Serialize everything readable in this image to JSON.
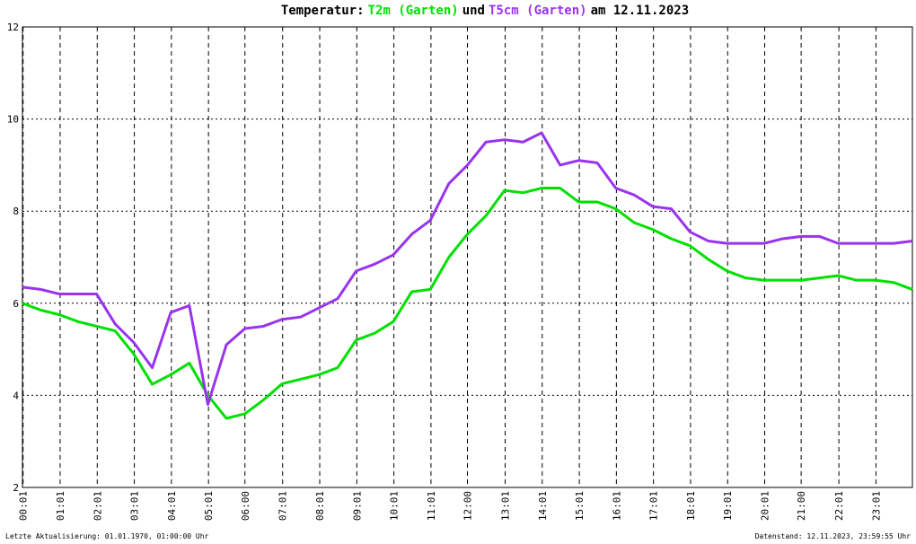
{
  "chart_data": {
    "type": "line",
    "title_start": "Temperatur:",
    "title_middle": "und",
    "title_end": "am 12.11.2023",
    "footer_left": "Letzte Aktualisierung: 01.01.1970, 01:00:00 Uhr",
    "footer_right": "Datenstand: 12.11.2023, 23:59:55 Uhr",
    "x": [
      0,
      0.5,
      1,
      1.5,
      2,
      2.5,
      3,
      3.5,
      4,
      4.5,
      5,
      5.5,
      6,
      6.5,
      7,
      7.5,
      8,
      8.5,
      9,
      9.5,
      10,
      10.5,
      11,
      11.5,
      12,
      12.5,
      13,
      13.5,
      14,
      14.5,
      15,
      15.5,
      16,
      16.5,
      17,
      17.5,
      18,
      18.5,
      19,
      19.5,
      20,
      20.5,
      21,
      21.5,
      22,
      22.5,
      23,
      23.5,
      24
    ],
    "series": [
      {
        "name": "T2m (Garten)",
        "color": "#00e000",
        "values": [
          6.0,
          5.85,
          5.75,
          5.6,
          5.5,
          5.4,
          4.9,
          4.24,
          4.45,
          4.7,
          4.0,
          3.5,
          3.6,
          3.9,
          4.25,
          4.35,
          4.45,
          4.6,
          5.2,
          5.35,
          5.6,
          6.25,
          6.3,
          7.0,
          7.5,
          7.9,
          8.45,
          8.4,
          8.5,
          8.5,
          8.2,
          8.2,
          8.05,
          7.75,
          7.6,
          7.4,
          7.25,
          6.95,
          6.7,
          6.55,
          6.5,
          6.5,
          6.5,
          6.55,
          6.6,
          6.5,
          6.5,
          6.45,
          6.3
        ]
      },
      {
        "name": "T5cm (Garten)",
        "color": "#9933ee",
        "values": [
          6.35,
          6.3,
          6.2,
          6.2,
          6.2,
          5.55,
          5.15,
          4.6,
          5.8,
          5.95,
          3.8,
          5.1,
          5.45,
          5.5,
          5.65,
          5.7,
          5.9,
          6.1,
          6.7,
          6.85,
          7.05,
          7.5,
          7.8,
          8.6,
          9.0,
          9.5,
          9.55,
          9.5,
          9.7,
          9.0,
          9.1,
          9.05,
          8.5,
          8.35,
          8.1,
          8.05,
          7.55,
          7.35,
          7.3,
          7.3,
          7.3,
          7.4,
          7.45,
          7.45,
          7.3,
          7.3,
          7.3,
          7.3,
          7.35
        ]
      }
    ],
    "xlim": [
      0,
      24
    ],
    "xticks": [
      {
        "value": 0.017,
        "label": "00:01"
      },
      {
        "value": 1.017,
        "label": "01:01"
      },
      {
        "value": 2.017,
        "label": "02:01"
      },
      {
        "value": 3.017,
        "label": "03:01"
      },
      {
        "value": 4.017,
        "label": "04:01"
      },
      {
        "value": 5.017,
        "label": "05:01"
      },
      {
        "value": 6,
        "label": "06:00"
      },
      {
        "value": 7.017,
        "label": "07:01"
      },
      {
        "value": 8.017,
        "label": "08:01"
      },
      {
        "value": 9.017,
        "label": "09:01"
      },
      {
        "value": 10.017,
        "label": "10:01"
      },
      {
        "value": 11.017,
        "label": "11:01"
      },
      {
        "value": 12,
        "label": "12:00"
      },
      {
        "value": 13.017,
        "label": "13:01"
      },
      {
        "value": 14.017,
        "label": "14:01"
      },
      {
        "value": 15.017,
        "label": "15:01"
      },
      {
        "value": 16.017,
        "label": "16:01"
      },
      {
        "value": 17.017,
        "label": "17:01"
      },
      {
        "value": 18.017,
        "label": "18:01"
      },
      {
        "value": 19.017,
        "label": "19:01"
      },
      {
        "value": 20.017,
        "label": "20:01"
      },
      {
        "value": 21,
        "label": "21:00"
      },
      {
        "value": 22.017,
        "label": "22:01"
      },
      {
        "value": 23.017,
        "label": "23:01"
      }
    ],
    "ylim": [
      2,
      12
    ],
    "yticks": [
      2,
      4,
      6,
      8,
      10,
      12
    ],
    "grid": true
  }
}
